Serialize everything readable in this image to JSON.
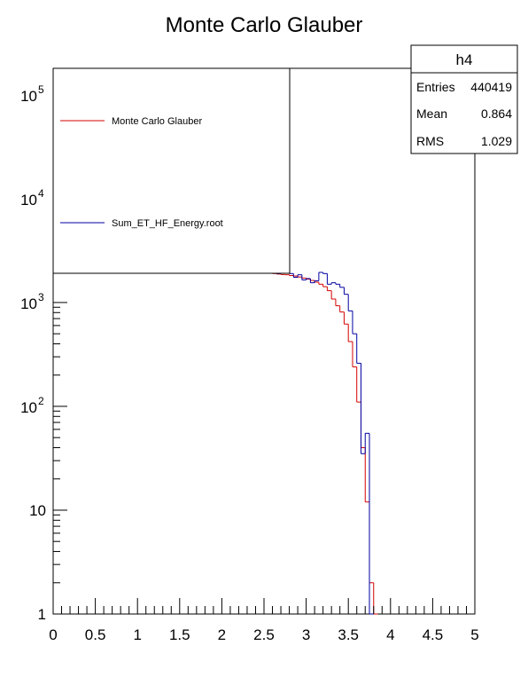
{
  "chart_data": {
    "type": "histogram",
    "title": "Monte Carlo Glauber",
    "xlabel": "",
    "ylabel": "",
    "xlim": [
      0,
      5
    ],
    "ylim": [
      1,
      180000
    ],
    "y_scale": "log",
    "bin_width": 0.05,
    "bin_edges_start": 2.5,
    "x_ticks": [
      "0",
      "0.5",
      "1",
      "1.5",
      "2",
      "2.5",
      "3",
      "3.5",
      "4",
      "4.5",
      "5"
    ],
    "y_ticks": [
      {
        "value": 1,
        "label": "1"
      },
      {
        "value": 10,
        "label": "10"
      },
      {
        "value": 100,
        "label_base": "10",
        "label_exp": "2"
      },
      {
        "value": 1000,
        "label_base": "10",
        "label_exp": "3"
      },
      {
        "value": 10000,
        "label_base": "10",
        "label_exp": "4"
      },
      {
        "value": 100000,
        "label_base": "10",
        "label_exp": "5"
      }
    ],
    "legend": {
      "placement": "top-left",
      "entries": [
        {
          "name": "Monte Carlo Glauber",
          "color": "#d40000"
        },
        {
          "name": "Sum_ET_HF_Energy.root",
          "color": "#0000a0"
        }
      ]
    },
    "stats": {
      "name": "h4",
      "rows": [
        {
          "label": "Entries",
          "value": "440419"
        },
        {
          "label": "Mean",
          "value": "0.864"
        },
        {
          "label": "RMS",
          "value": "1.029"
        }
      ]
    },
    "series": [
      {
        "name": "Monte Carlo Glauber",
        "color": "#d40000",
        "values": [
          2000,
          1950,
          1900,
          1880,
          1860,
          1850,
          1820,
          1800,
          1760,
          1720,
          1680,
          1630,
          1570,
          1500,
          1420,
          1300,
          1080,
          930,
          810,
          620,
          420,
          240,
          110,
          40,
          12,
          2,
          1
        ]
      },
      {
        "name": "Sum_ET_HF_Energy.root",
        "color": "#0000a0",
        "values": [
          2000,
          1950,
          1920,
          1900,
          2050,
          2150,
          1900,
          1750,
          1850,
          1650,
          1700,
          1550,
          1620,
          1950,
          1900,
          1500,
          1550,
          1500,
          1400,
          1200,
          830,
          500,
          260,
          35,
          55,
          1
        ]
      }
    ]
  }
}
